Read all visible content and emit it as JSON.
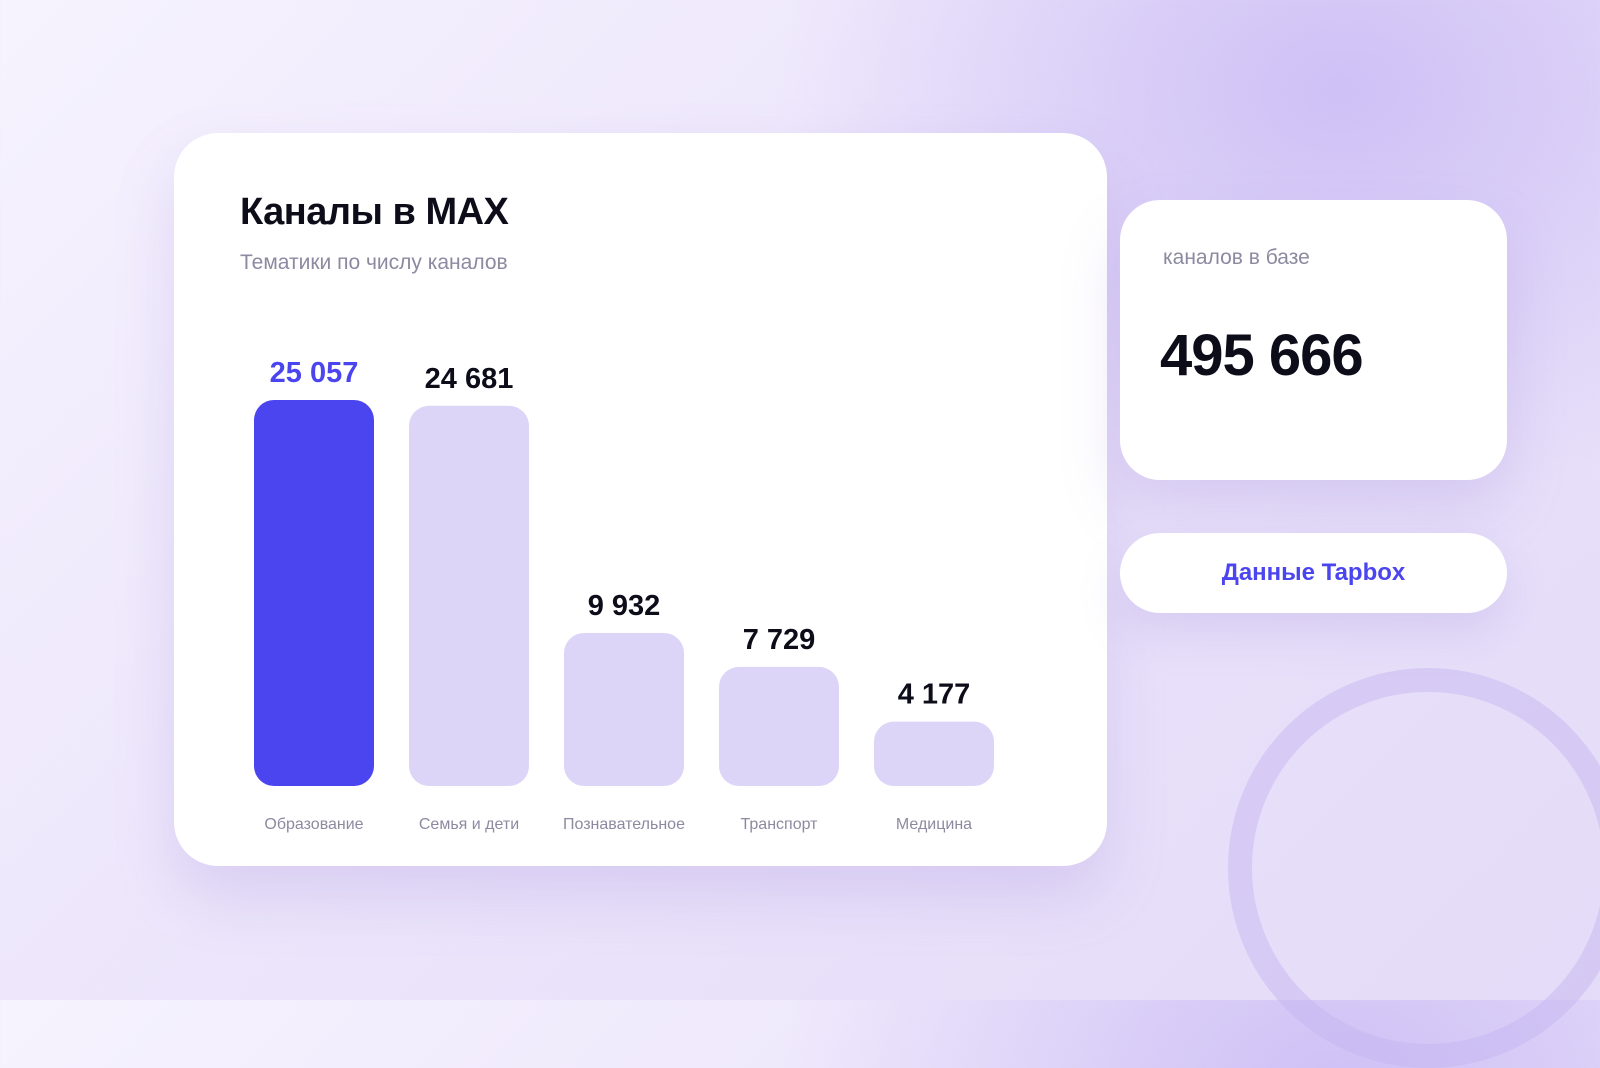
{
  "card": {
    "title": "Каналы в MAX",
    "subtitle": "Тематики по числу каналов"
  },
  "stat": {
    "label": "каналов в базе",
    "value": "495 666"
  },
  "source": {
    "label": "Данные Tapbox"
  },
  "colors": {
    "accent": "#4b45ef",
    "bar_default": "#ddd5f8",
    "value_text": "#0d0d1a",
    "muted_text": "#8c8aa0",
    "background": "#ece5fb"
  },
  "chart_data": {
    "type": "bar",
    "title": "Каналы в MAX",
    "subtitle": "Тематики по числу каналов",
    "categories": [
      "Образование",
      "Семья и дети",
      "Познавательное",
      "Транспорт",
      "Медицина"
    ],
    "values": [
      25057,
      24681,
      9932,
      7729,
      4177
    ],
    "value_labels": [
      "25 057",
      "24 681",
      "9 932",
      "7 729",
      "4 177"
    ],
    "highlight_index": 0,
    "xlabel": "",
    "ylabel": "",
    "grid": false,
    "axes_visible": false
  }
}
